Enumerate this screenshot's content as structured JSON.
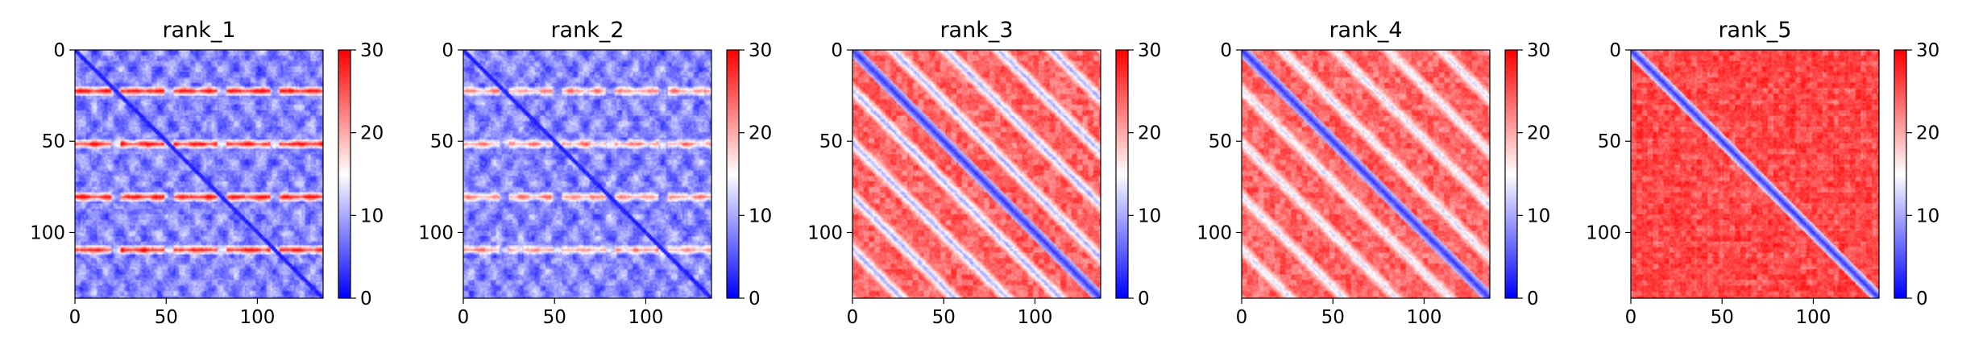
{
  "chart_data": [
    {
      "type": "heatmap",
      "title": "rank_1",
      "pattern": "diagonal with bright periodic stripes",
      "size": 136,
      "period": 29,
      "offset": 22,
      "xticks": [
        "0",
        "50",
        "100"
      ],
      "yticks": [
        "0",
        "50",
        "100"
      ],
      "xlim": [
        0,
        136
      ],
      "ylim": [
        136,
        0
      ],
      "colorbar": {
        "ticks": [
          "0",
          "10",
          "20",
          "30"
        ],
        "range": [
          0,
          30
        ],
        "colormap": "bwr"
      }
    },
    {
      "type": "heatmap",
      "title": "rank_2",
      "pattern": "diagonal with bright periodic stripes",
      "size": 136,
      "period": 29,
      "offset": 22,
      "xticks": [
        "0",
        "50",
        "100"
      ],
      "yticks": [
        "0",
        "50",
        "100"
      ],
      "xlim": [
        0,
        136
      ],
      "ylim": [
        136,
        0
      ],
      "colorbar": {
        "ticks": [
          "0",
          "10",
          "20",
          "30"
        ],
        "range": [
          0,
          30
        ],
        "colormap": "bwr"
      }
    },
    {
      "type": "heatmap",
      "title": "rank_3",
      "pattern": "blue diagonal with blue off-diagonal bands",
      "size": 136,
      "period": 29,
      "offset": 22,
      "xticks": [
        "0",
        "50",
        "100"
      ],
      "yticks": [
        "0",
        "50",
        "100"
      ],
      "xlim": [
        0,
        136
      ],
      "ylim": [
        136,
        0
      ],
      "colorbar": {
        "ticks": [
          "0",
          "10",
          "20",
          "30"
        ],
        "range": [
          0,
          30
        ],
        "colormap": "bwr"
      }
    },
    {
      "type": "heatmap",
      "title": "rank_4",
      "pattern": "blue diagonal with blue off-diagonal bands",
      "size": 136,
      "period": 29,
      "offset": 22,
      "xticks": [
        "0",
        "50",
        "100"
      ],
      "yticks": [
        "0",
        "50",
        "100"
      ],
      "xlim": [
        0,
        136
      ],
      "ylim": [
        136,
        0
      ],
      "colorbar": {
        "ticks": [
          "0",
          "10",
          "20",
          "30"
        ],
        "range": [
          0,
          30
        ],
        "colormap": "bwr"
      }
    },
    {
      "type": "heatmap",
      "title": "rank_5",
      "pattern": "blue diagonal on red background",
      "size": 136,
      "period": 29,
      "offset": 22,
      "xticks": [
        "0",
        "50",
        "100"
      ],
      "yticks": [
        "0",
        "50",
        "100"
      ],
      "xlim": [
        0,
        136
      ],
      "ylim": [
        136,
        0
      ],
      "colorbar": {
        "ticks": [
          "0",
          "10",
          "20",
          "30"
        ],
        "range": [
          0,
          30
        ],
        "colormap": "bwr"
      }
    }
  ]
}
